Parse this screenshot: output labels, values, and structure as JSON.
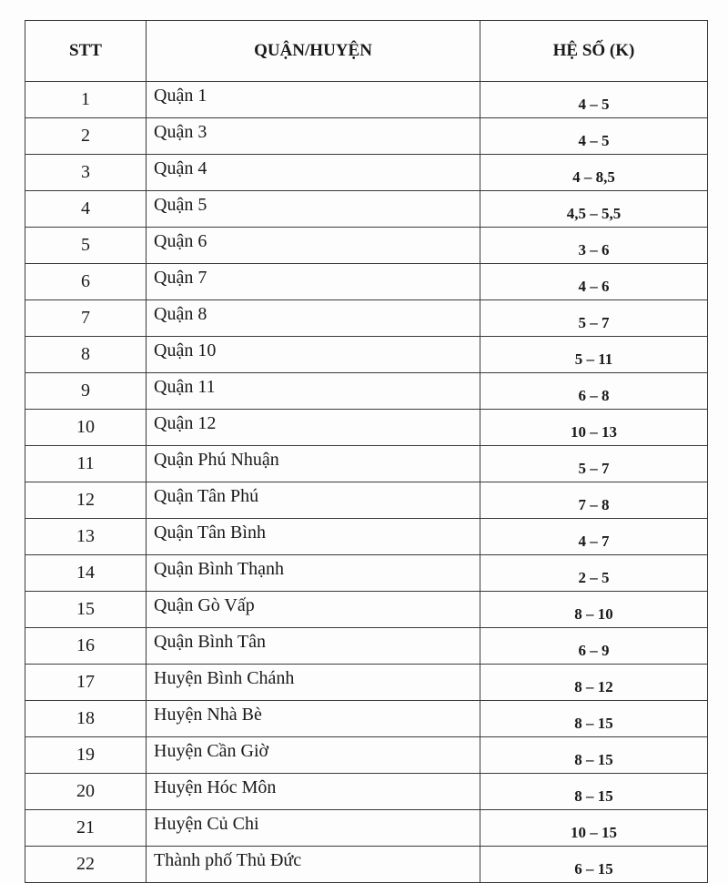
{
  "table": {
    "headers": [
      "STT",
      "QUẬN/HUYỆN",
      "HỆ SỐ (K)"
    ],
    "rows": [
      {
        "stt": "1",
        "name": "Quận 1",
        "k": "4 – 5"
      },
      {
        "stt": "2",
        "name": "Quận 3",
        "k": "4 – 5"
      },
      {
        "stt": "3",
        "name": "Quận 4",
        "k": "4 – 8,5"
      },
      {
        "stt": "4",
        "name": "Quận 5",
        "k": "4,5 – 5,5"
      },
      {
        "stt": "5",
        "name": "Quận 6",
        "k": "3 – 6"
      },
      {
        "stt": "6",
        "name": "Quận 7",
        "k": "4 – 6"
      },
      {
        "stt": "7",
        "name": "Quận 8",
        "k": "5 – 7"
      },
      {
        "stt": "8",
        "name": "Quận 10",
        "k": "5 – 11"
      },
      {
        "stt": "9",
        "name": "Quận 11",
        "k": "6 – 8"
      },
      {
        "stt": "10",
        "name": "Quận 12",
        "k": "10 – 13"
      },
      {
        "stt": "11",
        "name": "Quận Phú Nhuận",
        "k": "5 – 7"
      },
      {
        "stt": "12",
        "name": "Quận Tân Phú",
        "k": "7 – 8"
      },
      {
        "stt": "13",
        "name": "Quận Tân Bình",
        "k": "4 – 7"
      },
      {
        "stt": "14",
        "name": "Quận Bình Thạnh",
        "k": "2 – 5"
      },
      {
        "stt": "15",
        "name": "Quận Gò Vấp",
        "k": "8 – 10"
      },
      {
        "stt": "16",
        "name": "Quận Bình Tân",
        "k": "6 – 9"
      },
      {
        "stt": "17",
        "name": "Huyện Bình Chánh",
        "k": "8 – 12"
      },
      {
        "stt": "18",
        "name": "Huyện Nhà Bè",
        "k": "8 – 15"
      },
      {
        "stt": "19",
        "name": "Huyện Cần Giờ",
        "k": "8 – 15"
      },
      {
        "stt": "20",
        "name": "Huyện Hóc Môn",
        "k": "8 – 15"
      },
      {
        "stt": "21",
        "name": "Huyện Củ Chi",
        "k": "10 – 15"
      },
      {
        "stt": "22",
        "name": "Thành phố Thủ Đức",
        "k": "6 – 15"
      }
    ]
  }
}
